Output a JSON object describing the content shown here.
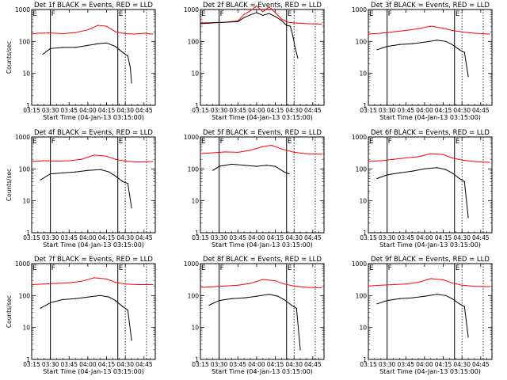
{
  "chart_data": [
    {
      "type": "line",
      "title": "Det 1f BLACK = Events, RED = LLD",
      "xlabel": "Start Time (04-Jan-13 03:15:00)",
      "ylabel": "Counts/sec",
      "xlim": [
        "03:15",
        "04:54"
      ],
      "ylim": [
        1,
        1000
      ],
      "yscale": "log",
      "x_ticks": [
        "03:15",
        "03:30",
        "03:45",
        "04:00",
        "04:15",
        "04:30",
        "04:45"
      ],
      "y_ticks": [
        "1",
        "10",
        "100",
        "1000"
      ],
      "series": [
        {
          "name": "LLD",
          "color": "#ff0000",
          "x": [
            "03:15",
            "03:20",
            "03:30",
            "03:40",
            "03:50",
            "04:00",
            "04:08",
            "04:15",
            "04:22",
            "04:30",
            "04:38",
            "04:45",
            "04:52"
          ],
          "values": [
            170,
            180,
            185,
            175,
            190,
            230,
            320,
            300,
            200,
            175,
            170,
            180,
            170
          ]
        },
        {
          "name": "Events",
          "color": "#000000",
          "x": [
            "03:24",
            "03:30",
            "03:40",
            "03:50",
            "04:00",
            "04:08",
            "04:15",
            "04:22",
            "04:28",
            "04:32",
            "04:34",
            "04:35"
          ],
          "values": [
            40,
            60,
            65,
            65,
            75,
            85,
            90,
            70,
            45,
            35,
            15,
            5
          ]
        }
      ],
      "markers": [
        {
          "label": "E",
          "x": "03:15"
        },
        {
          "label": "F",
          "x": "03:30"
        },
        {
          "label": "E",
          "x": "04:24"
        }
      ],
      "dotted_lines": [
        "04:30",
        "04:47"
      ]
    },
    {
      "type": "line",
      "title": "Det 2f BLACK = Events, RED = LLD",
      "xlabel": "Start Time (04-Jan-13 03:15:00)",
      "ylabel": "",
      "xlim": [
        "03:15",
        "04:54"
      ],
      "ylim": [
        1,
        1000
      ],
      "yscale": "log",
      "x_ticks": [
        "03:15",
        "03:30",
        "03:45",
        "04:00",
        "04:15",
        "04:30",
        "04:45"
      ],
      "y_ticks": [
        "1",
        "10",
        "100",
        "1000"
      ],
      "series": [
        {
          "name": "LLD",
          "color": "#ff0000",
          "x": [
            "03:15",
            "03:25",
            "03:35",
            "03:45",
            "03:50",
            "03:55",
            "04:00",
            "04:05",
            "04:10",
            "04:15",
            "04:20",
            "04:25",
            "04:30",
            "04:40",
            "04:52"
          ],
          "values": [
            380,
            390,
            400,
            440,
            700,
            900,
            1300,
            850,
            1200,
            800,
            500,
            400,
            380,
            360,
            350
          ]
        },
        {
          "name": "Events",
          "color": "#000000",
          "x": [
            "03:15",
            "03:25",
            "03:35",
            "03:45",
            "03:50",
            "03:55",
            "04:00",
            "04:05",
            "04:10",
            "04:15",
            "04:20",
            "04:24",
            "04:27",
            "04:29",
            "04:31",
            "04:33"
          ],
          "values": [
            360,
            380,
            400,
            420,
            560,
            680,
            800,
            650,
            750,
            600,
            450,
            320,
            300,
            150,
            60,
            30
          ]
        }
      ],
      "markers": [
        {
          "label": "E",
          "x": "03:15"
        },
        {
          "label": "F",
          "x": "03:30"
        },
        {
          "label": "E",
          "x": "04:24"
        }
      ],
      "dotted_lines": [
        "04:30",
        "04:47"
      ]
    },
    {
      "type": "line",
      "title": "Det 3f BLACK = Events, RED = LLD",
      "xlabel": "Start Time (04-Jan-13 03:15:00)",
      "ylabel": "",
      "xlim": [
        "03:15",
        "04:54"
      ],
      "ylim": [
        1,
        1000
      ],
      "yscale": "log",
      "x_ticks": [
        "03:15",
        "03:30",
        "03:45",
        "04:00",
        "04:15",
        "04:30",
        "04:45"
      ],
      "y_ticks": [
        "1",
        "10",
        "100",
        "1000"
      ],
      "series": [
        {
          "name": "LLD",
          "color": "#ff0000",
          "x": [
            "03:15",
            "03:25",
            "03:35",
            "03:45",
            "03:55",
            "04:05",
            "04:15",
            "04:22",
            "04:30",
            "04:40",
            "04:52"
          ],
          "values": [
            170,
            180,
            200,
            220,
            250,
            300,
            260,
            220,
            200,
            180,
            170
          ]
        },
        {
          "name": "Events",
          "color": "#000000",
          "x": [
            "03:22",
            "03:30",
            "03:40",
            "03:50",
            "04:00",
            "04:10",
            "04:17",
            "04:22",
            "04:28",
            "04:32",
            "04:35"
          ],
          "values": [
            55,
            70,
            80,
            85,
            95,
            110,
            100,
            80,
            55,
            45,
            8
          ]
        }
      ],
      "markers": [
        {
          "label": "E",
          "x": "03:15"
        },
        {
          "label": "F",
          "x": "03:30"
        },
        {
          "label": "E",
          "x": "04:24"
        }
      ],
      "dotted_lines": [
        "04:30",
        "04:47"
      ]
    },
    {
      "type": "line",
      "title": "Det 4f BLACK = Events, RED = LLD",
      "xlabel": "Start Time (04-Jan-13 03:15:00)",
      "ylabel": "Counts/sec",
      "xlim": [
        "03:15",
        "04:54"
      ],
      "ylim": [
        1,
        1000
      ],
      "yscale": "log",
      "x_ticks": [
        "03:15",
        "03:30",
        "03:45",
        "04:00",
        "04:15",
        "04:30",
        "04:45"
      ],
      "y_ticks": [
        "1",
        "10",
        "100",
        "1000"
      ],
      "series": [
        {
          "name": "LLD",
          "color": "#ff0000",
          "x": [
            "03:15",
            "03:25",
            "03:35",
            "03:45",
            "03:55",
            "04:05",
            "04:15",
            "04:22",
            "04:30",
            "04:40",
            "04:52"
          ],
          "values": [
            170,
            180,
            175,
            180,
            200,
            270,
            250,
            200,
            175,
            165,
            170
          ]
        },
        {
          "name": "Events",
          "color": "#000000",
          "x": [
            "03:22",
            "03:30",
            "03:40",
            "03:50",
            "04:00",
            "04:10",
            "04:17",
            "04:22",
            "04:28",
            "04:32",
            "04:35"
          ],
          "values": [
            45,
            70,
            75,
            80,
            90,
            95,
            80,
            60,
            40,
            35,
            6
          ]
        }
      ],
      "markers": [
        {
          "label": "E",
          "x": "03:15"
        },
        {
          "label": "F",
          "x": "03:30"
        },
        {
          "label": "E",
          "x": "04:24"
        }
      ],
      "dotted_lines": [
        "04:30",
        "04:47"
      ]
    },
    {
      "type": "line",
      "title": "Det 5f BLACK = Events, RED = LLD",
      "xlabel": "Start Time (04-Jan-13 03:15:00)",
      "ylabel": "",
      "xlim": [
        "03:15",
        "04:54"
      ],
      "ylim": [
        1,
        1000
      ],
      "yscale": "log",
      "x_ticks": [
        "03:15",
        "03:30",
        "03:45",
        "04:00",
        "04:15",
        "04:30",
        "04:45"
      ],
      "y_ticks": [
        "1",
        "10",
        "100",
        "1000"
      ],
      "series": [
        {
          "name": "LLD",
          "color": "#ff0000",
          "x": [
            "03:15",
            "03:25",
            "03:35",
            "03:45",
            "03:55",
            "04:05",
            "04:12",
            "04:20",
            "04:30",
            "04:40",
            "04:52"
          ],
          "values": [
            300,
            320,
            340,
            330,
            380,
            500,
            550,
            420,
            330,
            300,
            290
          ]
        },
        {
          "name": "Events",
          "color": "#000000",
          "x": [
            "03:25",
            "03:30",
            "03:40",
            "03:50",
            "04:00",
            "04:08",
            "04:15",
            "04:22",
            "04:26"
          ],
          "values": [
            90,
            120,
            140,
            130,
            120,
            130,
            120,
            80,
            70
          ]
        }
      ],
      "markers": [
        {
          "label": "E",
          "x": "03:15"
        },
        {
          "label": "F",
          "x": "03:30"
        },
        {
          "label": "E",
          "x": "04:24"
        }
      ],
      "dotted_lines": [
        "04:30",
        "04:47"
      ]
    },
    {
      "type": "line",
      "title": "Det 6f BLACK = Events, RED = LLD",
      "xlabel": "Start Time (04-Jan-13 03:15:00)",
      "ylabel": "",
      "xlim": [
        "03:15",
        "04:54"
      ],
      "ylim": [
        1,
        1000
      ],
      "yscale": "log",
      "x_ticks": [
        "03:15",
        "03:30",
        "03:45",
        "04:00",
        "04:15",
        "04:30",
        "04:45"
      ],
      "y_ticks": [
        "1",
        "10",
        "100",
        "1000"
      ],
      "series": [
        {
          "name": "LLD",
          "color": "#ff0000",
          "x": [
            "03:15",
            "03:25",
            "03:35",
            "03:45",
            "03:55",
            "04:05",
            "04:15",
            "04:22",
            "04:30",
            "04:40",
            "04:52"
          ],
          "values": [
            170,
            180,
            200,
            220,
            240,
            300,
            280,
            220,
            190,
            170,
            160
          ]
        },
        {
          "name": "Events",
          "color": "#000000",
          "x": [
            "03:22",
            "03:30",
            "03:40",
            "03:50",
            "04:00",
            "04:10",
            "04:17",
            "04:22",
            "04:28",
            "04:32",
            "04:35"
          ],
          "values": [
            50,
            65,
            75,
            85,
            100,
            110,
            95,
            75,
            50,
            40,
            3
          ]
        }
      ],
      "markers": [
        {
          "label": "E",
          "x": "03:15"
        },
        {
          "label": "F",
          "x": "03:30"
        },
        {
          "label": "E",
          "x": "04:24"
        }
      ],
      "dotted_lines": [
        "04:30",
        "04:47"
      ]
    },
    {
      "type": "line",
      "title": "Det 7f BLACK = Events, RED = LLD",
      "xlabel": "Start Time (04-Jan-13 03:15:00)",
      "ylabel": "Counts/sec",
      "xlim": [
        "03:15",
        "04:54"
      ],
      "ylim": [
        1,
        1000
      ],
      "yscale": "log",
      "x_ticks": [
        "03:15",
        "03:30",
        "03:45",
        "04:00",
        "04:15",
        "04:30",
        "04:45"
      ],
      "y_ticks": [
        "1",
        "10",
        "100",
        "1000"
      ],
      "series": [
        {
          "name": "LLD",
          "color": "#ff0000",
          "x": [
            "03:15",
            "03:25",
            "03:35",
            "03:45",
            "03:55",
            "04:05",
            "04:15",
            "04:22",
            "04:30",
            "04:40",
            "04:52"
          ],
          "values": [
            220,
            230,
            240,
            250,
            280,
            360,
            330,
            260,
            230,
            220,
            220
          ]
        },
        {
          "name": "Events",
          "color": "#000000",
          "x": [
            "03:22",
            "03:30",
            "03:40",
            "03:50",
            "04:00",
            "04:10",
            "04:17",
            "04:22",
            "04:28",
            "04:32",
            "04:35"
          ],
          "values": [
            40,
            60,
            75,
            80,
            90,
            100,
            90,
            70,
            45,
            35,
            4
          ]
        }
      ],
      "markers": [
        {
          "label": "E",
          "x": "03:15"
        },
        {
          "label": "F",
          "x": "03:30"
        },
        {
          "label": "E",
          "x": "04:24"
        }
      ],
      "dotted_lines": [
        "04:30",
        "04:47"
      ]
    },
    {
      "type": "line",
      "title": "Det 8f BLACK = Events, RED = LLD",
      "xlabel": "Start Time (04-Jan-13 03:15:00)",
      "ylabel": "",
      "xlim": [
        "03:15",
        "04:54"
      ],
      "ylim": [
        1,
        1000
      ],
      "yscale": "log",
      "x_ticks": [
        "03:15",
        "03:30",
        "03:45",
        "04:00",
        "04:15",
        "04:30",
        "04:45"
      ],
      "y_ticks": [
        "1",
        "10",
        "100",
        "1000"
      ],
      "series": [
        {
          "name": "LLD",
          "color": "#ff0000",
          "x": [
            "03:15",
            "03:25",
            "03:35",
            "03:45",
            "03:55",
            "04:05",
            "04:15",
            "04:22",
            "04:30",
            "04:40",
            "04:52"
          ],
          "values": [
            180,
            190,
            200,
            210,
            240,
            320,
            290,
            230,
            200,
            180,
            175
          ]
        },
        {
          "name": "Events",
          "color": "#000000",
          "x": [
            "03:22",
            "03:30",
            "03:40",
            "03:50",
            "04:00",
            "04:10",
            "04:17",
            "04:22",
            "04:28",
            "04:32",
            "04:35"
          ],
          "values": [
            50,
            70,
            80,
            85,
            95,
            110,
            95,
            75,
            50,
            40,
            2
          ]
        }
      ],
      "markers": [
        {
          "label": "E",
          "x": "03:15"
        },
        {
          "label": "F",
          "x": "03:30"
        },
        {
          "label": "E",
          "x": "04:24"
        }
      ],
      "dotted_lines": [
        "04:30",
        "04:47"
      ]
    },
    {
      "type": "line",
      "title": "Det 9f BLACK = Events, RED = LLD",
      "xlabel": "Start Time (04-Jan-13 03:15:00)",
      "ylabel": "",
      "xlim": [
        "03:15",
        "04:54"
      ],
      "ylim": [
        1,
        1000
      ],
      "yscale": "log",
      "x_ticks": [
        "03:15",
        "03:30",
        "03:45",
        "04:00",
        "04:15",
        "04:30",
        "04:45"
      ],
      "y_ticks": [
        "1",
        "10",
        "100",
        "1000"
      ],
      "series": [
        {
          "name": "LLD",
          "color": "#ff0000",
          "x": [
            "03:15",
            "03:25",
            "03:35",
            "03:45",
            "03:55",
            "04:05",
            "04:15",
            "04:22",
            "04:30",
            "04:40",
            "04:52"
          ],
          "values": [
            200,
            210,
            220,
            230,
            260,
            340,
            310,
            250,
            210,
            195,
            190
          ]
        },
        {
          "name": "Events",
          "color": "#000000",
          "x": [
            "03:22",
            "03:30",
            "03:40",
            "03:50",
            "04:00",
            "04:10",
            "04:17",
            "04:22",
            "04:28",
            "04:32",
            "04:35"
          ],
          "values": [
            55,
            70,
            80,
            85,
            95,
            110,
            100,
            80,
            55,
            45,
            5
          ]
        }
      ],
      "markers": [
        {
          "label": "E",
          "x": "03:15"
        },
        {
          "label": "F",
          "x": "03:30"
        },
        {
          "label": "E",
          "x": "04:24"
        }
      ],
      "dotted_lines": [
        "04:30",
        "04:47"
      ]
    }
  ]
}
